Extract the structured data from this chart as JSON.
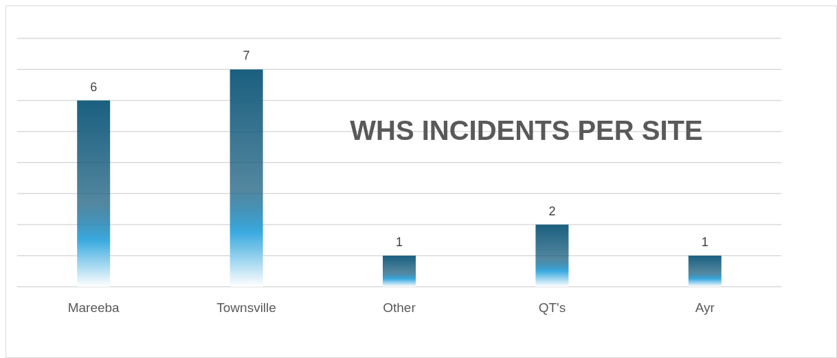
{
  "chart_data": {
    "type": "bar",
    "title": "WHS INCIDENTS PER SITE",
    "categories": [
      "Mareeba",
      "Townsville",
      "Other",
      "QT's",
      "Ayr"
    ],
    "values": [
      6,
      7,
      1,
      2,
      1
    ],
    "color": "#1a5f7f",
    "ylim": [
      0,
      8
    ],
    "yticks": [
      {
        "value": 0,
        "label": null
      },
      {
        "value": 1,
        "label": null
      },
      {
        "value": 2,
        "label": null
      },
      {
        "value": 3,
        "label": null
      },
      {
        "value": 4,
        "label": null
      },
      {
        "value": 5,
        "label": null
      },
      {
        "value": 6,
        "label": null
      },
      {
        "value": 7,
        "label": null
      },
      {
        "value": 8,
        "label": null
      }
    ],
    "tick_labels": "x",
    "grid": "y",
    "data_labels": true
  }
}
